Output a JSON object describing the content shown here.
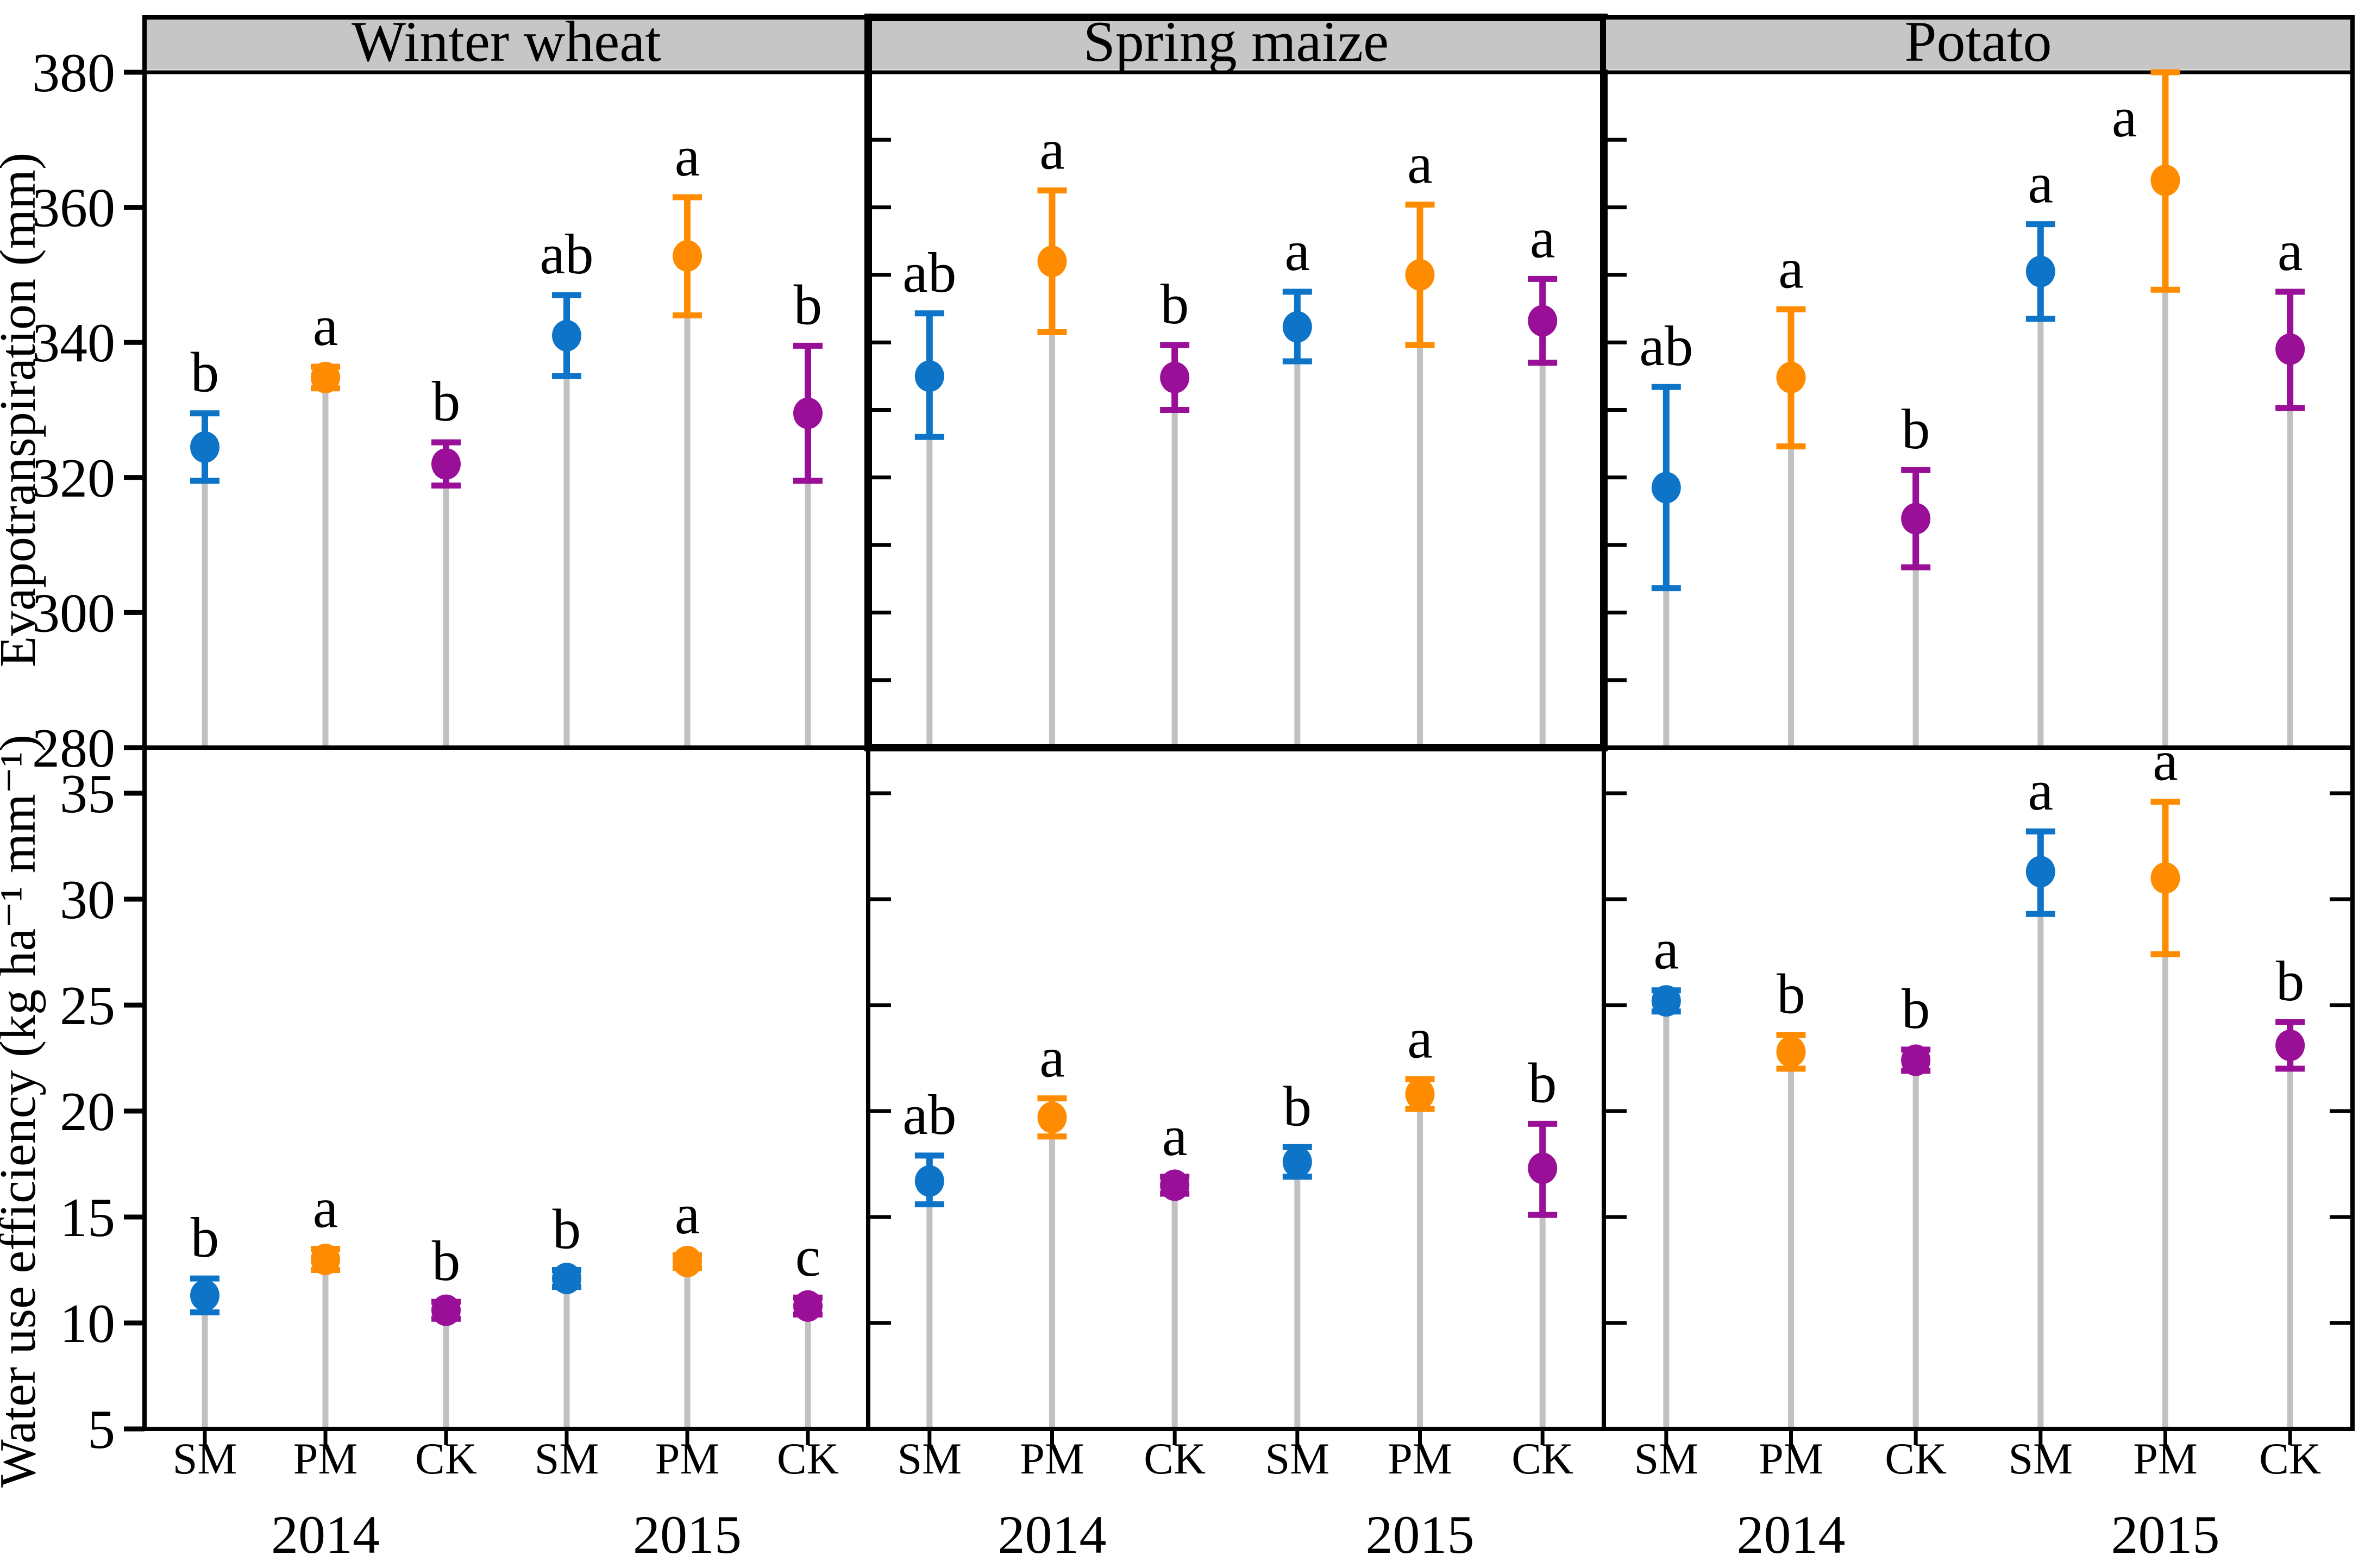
{
  "figure": {
    "background": "#ffffff",
    "frame_color": "#000000",
    "header_bg": "#c6c6c6",
    "stem_color": "#c1c1c1",
    "text_color": "#000000",
    "series_colors": {
      "SM": "#0d74c8",
      "PM": "#ff8c00",
      "CK": "#990f97"
    }
  },
  "chart_data": {
    "type": "scatter",
    "grid": false,
    "legend_position": "none",
    "columns": [
      "Winter wheat",
      "Spring maize",
      "Potato"
    ],
    "x_axis": {
      "treatments": [
        "SM",
        "PM",
        "CK"
      ],
      "slot_labels": [
        "SM",
        "PM",
        "CK",
        "SM",
        "PM",
        "CK"
      ],
      "years": [
        "2014",
        "2015"
      ],
      "year_slot_index": [
        1,
        4
      ]
    },
    "rows": [
      {
        "id": "evapotranspiration",
        "ylabel": "Evapotranspiration (mm)",
        "ylim": [
          280,
          380
        ],
        "yticks": [
          280,
          300,
          320,
          340,
          360,
          380
        ],
        "interior_ticks": [
          290,
          300,
          310,
          320,
          330,
          340,
          350,
          360,
          370
        ],
        "show_header": true,
        "panels": [
          {
            "crop": "Winter wheat",
            "points": [
              {
                "treatment": "SM",
                "year": "2014",
                "value": 324.5,
                "err_lo": 319.5,
                "err_hi": 329.5,
                "letter": "b"
              },
              {
                "treatment": "PM",
                "year": "2014",
                "value": 334.8,
                "err_lo": 333.2,
                "err_hi": 336.4,
                "letter": "a"
              },
              {
                "treatment": "CK",
                "year": "2014",
                "value": 322.0,
                "err_lo": 318.8,
                "err_hi": 325.2,
                "letter": "b"
              },
              {
                "treatment": "SM",
                "year": "2015",
                "value": 341.0,
                "err_lo": 335.0,
                "err_hi": 347.0,
                "letter": "ab"
              },
              {
                "treatment": "PM",
                "year": "2015",
                "value": 352.8,
                "err_lo": 344.0,
                "err_hi": 361.5,
                "letter": "a"
              },
              {
                "treatment": "CK",
                "year": "2015",
                "value": 329.5,
                "err_lo": 319.5,
                "err_hi": 339.5,
                "letter": "b"
              }
            ]
          },
          {
            "crop": "Spring maize",
            "points": [
              {
                "treatment": "SM",
                "year": "2014",
                "value": 335.0,
                "err_lo": 326.0,
                "err_hi": 344.3,
                "letter": "ab"
              },
              {
                "treatment": "PM",
                "year": "2014",
                "value": 352.0,
                "err_lo": 341.5,
                "err_hi": 362.5,
                "letter": "a"
              },
              {
                "treatment": "CK",
                "year": "2014",
                "value": 334.8,
                "err_lo": 330.0,
                "err_hi": 339.6,
                "letter": "b"
              },
              {
                "treatment": "SM",
                "year": "2015",
                "value": 342.3,
                "err_lo": 337.2,
                "err_hi": 347.5,
                "letter": "a"
              },
              {
                "treatment": "PM",
                "year": "2015",
                "value": 350.0,
                "err_lo": 339.6,
                "err_hi": 360.4,
                "letter": "a"
              },
              {
                "treatment": "CK",
                "year": "2015",
                "value": 343.2,
                "err_lo": 337.0,
                "err_hi": 349.4,
                "letter": "a"
              }
            ]
          },
          {
            "crop": "Potato",
            "points": [
              {
                "treatment": "SM",
                "year": "2014",
                "value": 318.5,
                "err_lo": 303.6,
                "err_hi": 333.4,
                "letter": "ab"
              },
              {
                "treatment": "PM",
                "year": "2014",
                "value": 334.8,
                "err_lo": 324.6,
                "err_hi": 344.9,
                "letter": "a"
              },
              {
                "treatment": "CK",
                "year": "2014",
                "value": 313.9,
                "err_lo": 306.7,
                "err_hi": 321.1,
                "letter": "b"
              },
              {
                "treatment": "SM",
                "year": "2015",
                "value": 350.5,
                "err_lo": 343.5,
                "err_hi": 357.5,
                "letter": "a"
              },
              {
                "treatment": "PM",
                "year": "2015",
                "value": 364.0,
                "err_lo": 347.8,
                "err_hi": 380.0,
                "letter": "a",
                "letter_side": "left"
              },
              {
                "treatment": "CK",
                "year": "2015",
                "value": 339.0,
                "err_lo": 330.3,
                "err_hi": 347.5,
                "letter": "a"
              }
            ]
          }
        ]
      },
      {
        "id": "water_use_efficiency",
        "ylabel": "Water use efficiency (kg ha⁻¹ mm⁻¹)",
        "ylim": [
          5,
          35
        ],
        "yticks": [
          5,
          10,
          15,
          20,
          25,
          30,
          35
        ],
        "interior_ticks": [
          10,
          15,
          20,
          25,
          30,
          35
        ],
        "show_header": false,
        "panels": [
          {
            "crop": "Winter wheat",
            "points": [
              {
                "treatment": "SM",
                "year": "2014",
                "value": 11.3,
                "err_lo": 10.5,
                "err_hi": 12.1,
                "letter": "b"
              },
              {
                "treatment": "PM",
                "year": "2014",
                "value": 13.0,
                "err_lo": 12.5,
                "err_hi": 13.5,
                "letter": "a"
              },
              {
                "treatment": "CK",
                "year": "2014",
                "value": 10.6,
                "err_lo": 10.2,
                "err_hi": 11.0,
                "letter": "b"
              },
              {
                "treatment": "SM",
                "year": "2015",
                "value": 12.1,
                "err_lo": 11.7,
                "err_hi": 12.5,
                "letter": "b"
              },
              {
                "treatment": "PM",
                "year": "2015",
                "value": 12.9,
                "err_lo": 12.6,
                "err_hi": 13.2,
                "letter": "a"
              },
              {
                "treatment": "CK",
                "year": "2015",
                "value": 10.8,
                "err_lo": 10.4,
                "err_hi": 11.2,
                "letter": "c"
              }
            ]
          },
          {
            "crop": "Spring maize",
            "points": [
              {
                "treatment": "SM",
                "year": "2014",
                "value": 16.7,
                "err_lo": 15.6,
                "err_hi": 17.9,
                "letter": "ab"
              },
              {
                "treatment": "PM",
                "year": "2014",
                "value": 19.7,
                "err_lo": 18.8,
                "err_hi": 20.6,
                "letter": "a"
              },
              {
                "treatment": "CK",
                "year": "2014",
                "value": 16.5,
                "err_lo": 16.1,
                "err_hi": 16.9,
                "letter": "a"
              },
              {
                "treatment": "SM",
                "year": "2015",
                "value": 17.6,
                "err_lo": 16.9,
                "err_hi": 18.3,
                "letter": "b"
              },
              {
                "treatment": "PM",
                "year": "2015",
                "value": 20.8,
                "err_lo": 20.1,
                "err_hi": 21.5,
                "letter": "a"
              },
              {
                "treatment": "CK",
                "year": "2015",
                "value": 17.3,
                "err_lo": 15.1,
                "err_hi": 19.4,
                "letter": "b"
              }
            ]
          },
          {
            "crop": "Potato",
            "points": [
              {
                "treatment": "SM",
                "year": "2014",
                "value": 25.2,
                "err_lo": 24.7,
                "err_hi": 25.7,
                "letter": "a"
              },
              {
                "treatment": "PM",
                "year": "2014",
                "value": 22.8,
                "err_lo": 22.0,
                "err_hi": 23.6,
                "letter": "b"
              },
              {
                "treatment": "CK",
                "year": "2014",
                "value": 22.4,
                "err_lo": 21.9,
                "err_hi": 22.9,
                "letter": "b"
              },
              {
                "treatment": "SM",
                "year": "2015",
                "value": 31.3,
                "err_lo": 29.3,
                "err_hi": 33.2,
                "letter": "a"
              },
              {
                "treatment": "PM",
                "year": "2015",
                "value": 31.0,
                "err_lo": 27.4,
                "err_hi": 34.6,
                "letter": "a"
              },
              {
                "treatment": "CK",
                "year": "2015",
                "value": 23.1,
                "err_lo": 22.0,
                "err_hi": 24.2,
                "letter": "b"
              }
            ]
          }
        ]
      }
    ]
  }
}
